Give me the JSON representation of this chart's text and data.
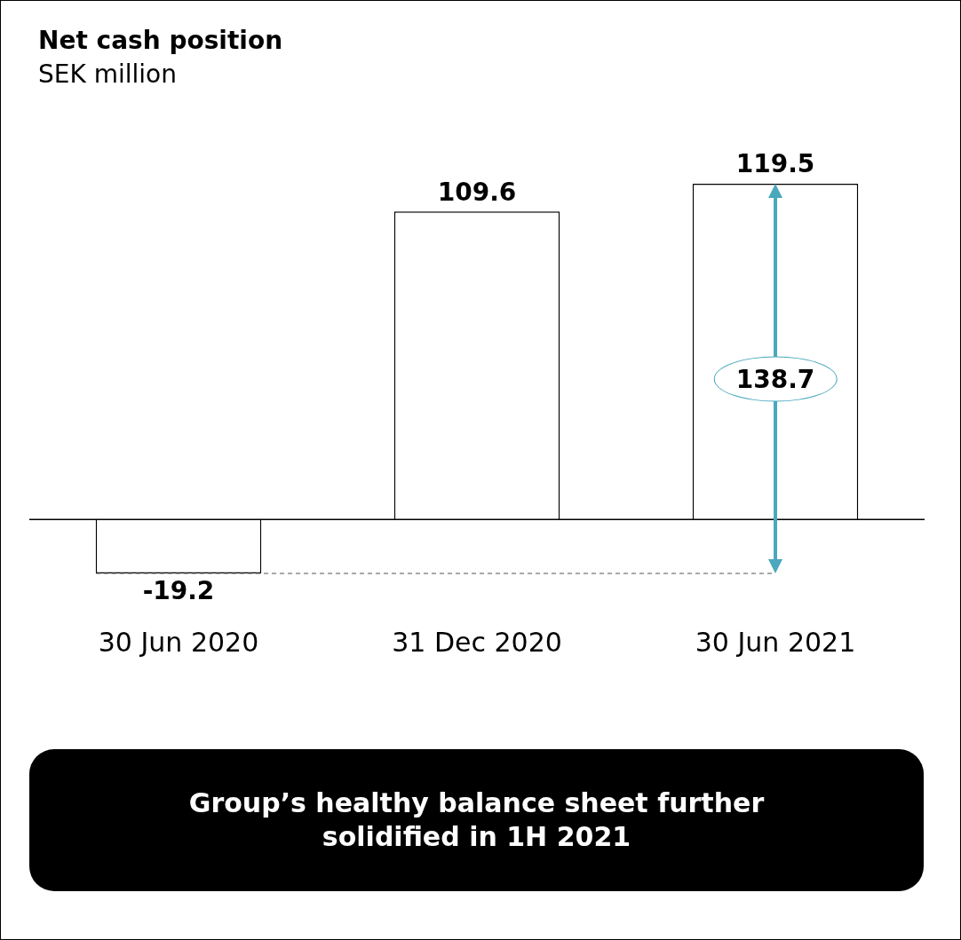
{
  "chart_data": {
    "type": "bar",
    "title": "Net cash position",
    "subtitle": "SEK million",
    "categories": [
      "30 Jun 2020",
      "31 Dec 2020",
      "30 Jun 2021"
    ],
    "values": [
      -19.2,
      109.6,
      119.5
    ],
    "color": "#ffffff",
    "data_labels": true,
    "grid": false,
    "legend": false,
    "tick_labels": "x",
    "ref_lines": [
      {
        "axis": "y",
        "value": -19.2,
        "color": "#555555",
        "line_style": "dashed"
      }
    ],
    "annotations": [
      "138.7",
      "Group’s healthy balance sheet further solidified in 1H 2021"
    ]
  }
}
